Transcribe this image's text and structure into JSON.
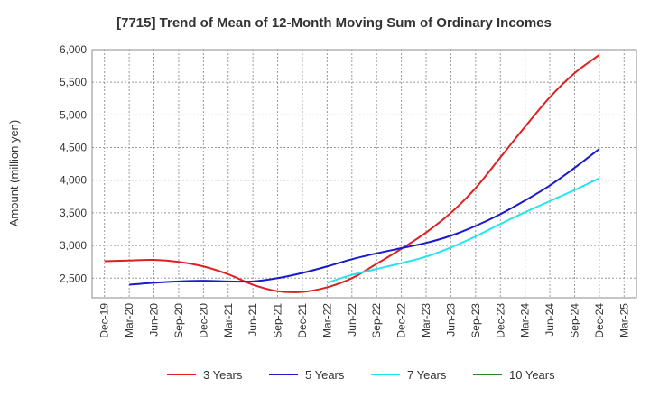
{
  "chart_data": {
    "type": "line",
    "title": "[7715]  Trend of Mean of 12-Month Moving Sum of Ordinary Incomes",
    "xlabel": "",
    "ylabel": "Amount (million yen)",
    "ylim": [
      2200,
      6000
    ],
    "yticks": [
      2500,
      3000,
      3500,
      4000,
      4500,
      5000,
      5500,
      6000
    ],
    "ytick_labels": [
      "2,500",
      "3,000",
      "3,500",
      "4,000",
      "4,500",
      "5,000",
      "5,500",
      "6,000"
    ],
    "categories": [
      "Dec-19",
      "Mar-20",
      "Jun-20",
      "Sep-20",
      "Dec-20",
      "Mar-21",
      "Jun-21",
      "Sep-21",
      "Dec-21",
      "Mar-22",
      "Jun-22",
      "Sep-22",
      "Dec-22",
      "Mar-23",
      "Jun-23",
      "Sep-23",
      "Dec-23",
      "Mar-24",
      "Jun-24",
      "Sep-24",
      "Dec-24",
      "Mar-25"
    ],
    "grid": true,
    "legend_position": "bottom",
    "series": [
      {
        "name": "3 Years",
        "color": "#e02020",
        "values": [
          2760,
          2770,
          2780,
          2750,
          2680,
          2560,
          2400,
          2300,
          2290,
          2360,
          2500,
          2720,
          2950,
          3200,
          3500,
          3880,
          4350,
          4820,
          5270,
          5640,
          5920,
          null
        ]
      },
      {
        "name": "5 Years",
        "color": "#1a1acc",
        "values": [
          null,
          2400,
          2430,
          2450,
          2460,
          2450,
          2450,
          2500,
          2580,
          2680,
          2790,
          2880,
          2960,
          3040,
          3150,
          3300,
          3480,
          3690,
          3920,
          4190,
          4480,
          null
        ]
      },
      {
        "name": "7 Years",
        "color": "#22e5ee",
        "values": [
          null,
          null,
          null,
          null,
          null,
          null,
          null,
          null,
          null,
          2430,
          2550,
          2640,
          2730,
          2830,
          2970,
          3140,
          3330,
          3510,
          3680,
          3850,
          4030,
          null
        ]
      },
      {
        "name": "10 Years",
        "color": "#228b22",
        "values": [
          null,
          null,
          null,
          null,
          null,
          null,
          null,
          null,
          null,
          null,
          null,
          null,
          null,
          null,
          null,
          null,
          null,
          null,
          null,
          null,
          null,
          null
        ]
      }
    ]
  }
}
